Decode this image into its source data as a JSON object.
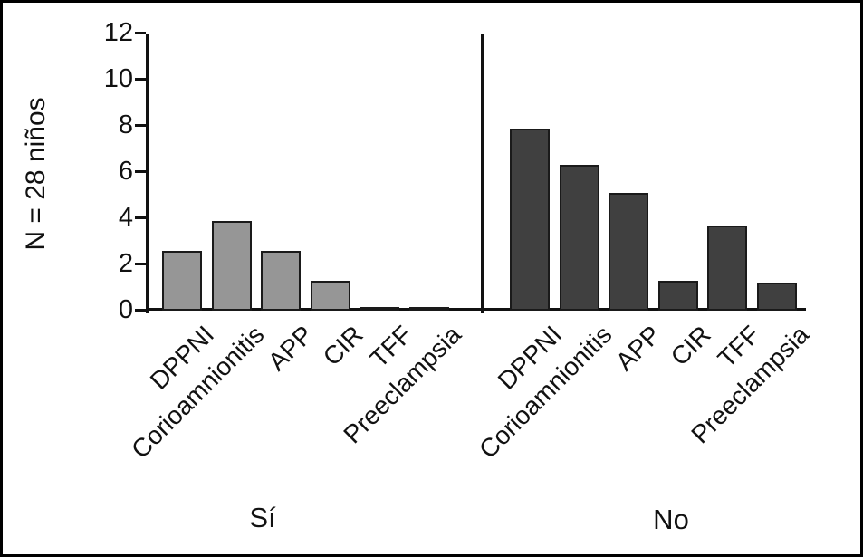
{
  "chart_data": {
    "type": "bar",
    "title": "",
    "ylabel": "N = 28 niños",
    "xlabel": "",
    "ylim": [
      0,
      12
    ],
    "yticks": [
      0,
      2,
      4,
      6,
      8,
      10,
      12
    ],
    "grid": false,
    "legend_position": "none",
    "categories": [
      "DPPNI",
      "Corioamnionitis",
      "APP",
      "CIR",
      "TFF",
      "Preeclampsia"
    ],
    "groups": [
      {
        "label": "Sí",
        "bar_color": "#969696",
        "values": [
          2.6,
          3.9,
          2.6,
          1.3,
          0.1,
          0.1
        ]
      },
      {
        "label": "No",
        "bar_color": "#404040",
        "values": [
          7.9,
          6.3,
          5.1,
          1.3,
          3.7,
          1.2
        ]
      }
    ],
    "bar_border_color": "#1a1a1a",
    "axis_color": "#111111",
    "background_color": "#ffffff",
    "frame_color": "#000000"
  }
}
